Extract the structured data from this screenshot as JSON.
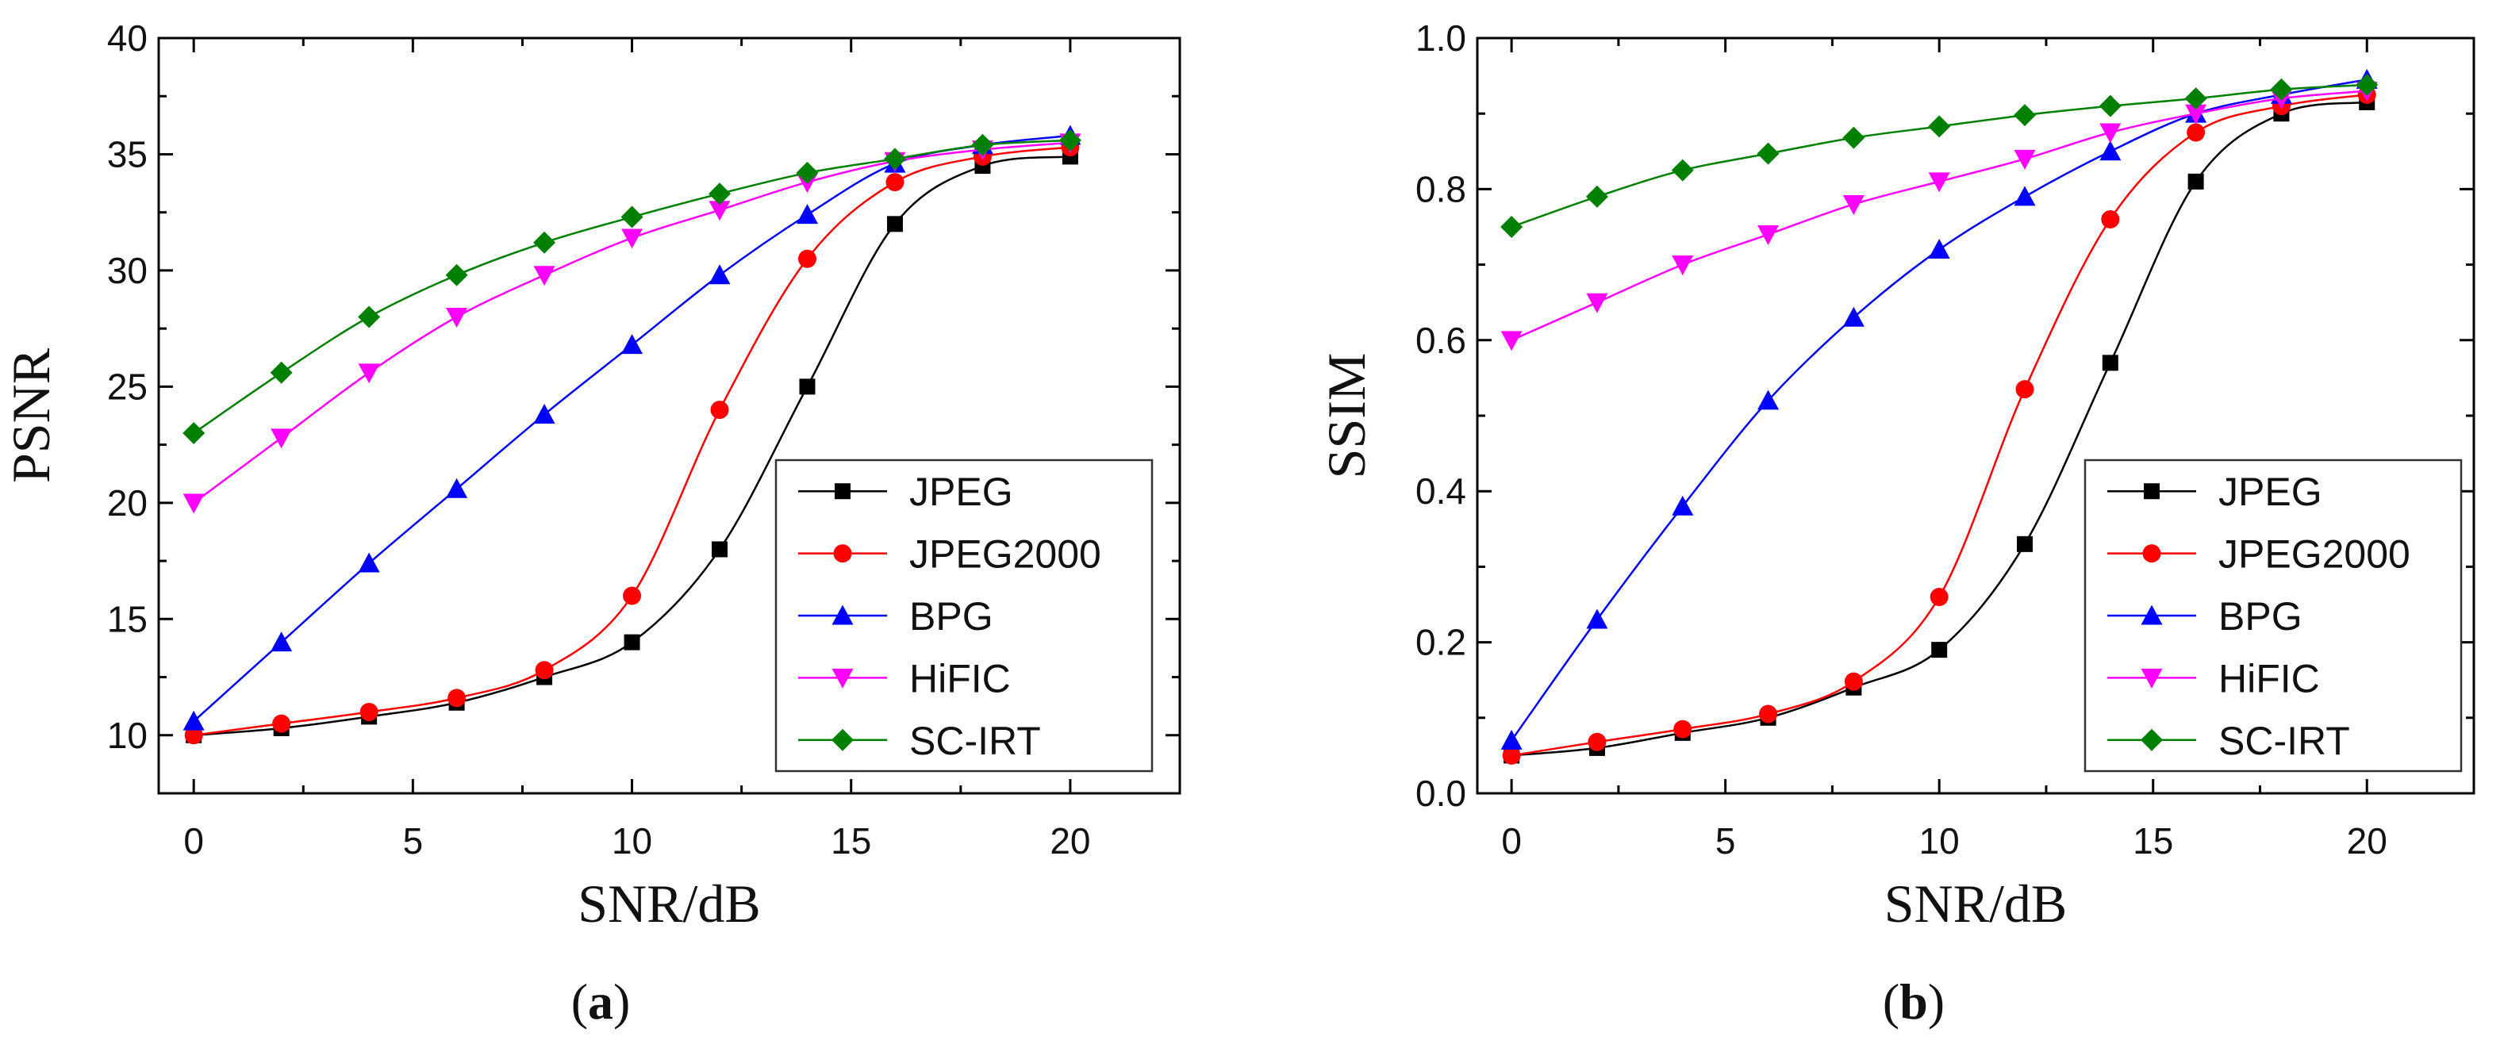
{
  "chart_data": [
    {
      "type": "line",
      "panel_label": "a",
      "xlabel": "SNR/dB",
      "ylabel": "PSNR",
      "xlim": [
        -0.8,
        22.5
      ],
      "ylim": [
        7.5,
        40
      ],
      "xticks": [
        0,
        5,
        10,
        15,
        20
      ],
      "yticks": [
        10,
        15,
        20,
        25,
        30,
        35,
        40
      ],
      "x_minor_ticks": [
        2.5,
        7.5,
        12.5,
        17.5
      ],
      "y_minor_ticks": [
        12.5,
        17.5,
        22.5,
        27.5,
        32.5,
        37.5
      ],
      "legend_position": "bottom-right",
      "x": [
        0,
        2,
        4,
        6,
        8,
        10,
        12,
        14,
        16,
        18,
        20
      ],
      "series": [
        {
          "name": "JPEG",
          "color": "#000000",
          "marker": "square",
          "values": [
            10.0,
            10.3,
            10.8,
            11.4,
            12.5,
            14.0,
            18.0,
            25.0,
            32.0,
            34.5,
            34.9
          ]
        },
        {
          "name": "JPEG2000",
          "color": "#ff0000",
          "marker": "circle",
          "values": [
            10.0,
            10.5,
            11.0,
            11.6,
            12.8,
            16.0,
            24.0,
            30.5,
            33.8,
            34.9,
            35.3
          ]
        },
        {
          "name": "BPG",
          "color": "#0000ff",
          "marker": "triangle-up",
          "values": [
            10.6,
            14.0,
            17.4,
            20.6,
            23.8,
            26.8,
            29.8,
            32.4,
            34.6,
            35.4,
            35.8
          ]
        },
        {
          "name": "HiFIC",
          "color": "#ff00ff",
          "marker": "triangle-down",
          "values": [
            20.0,
            22.8,
            25.6,
            28.0,
            29.8,
            31.4,
            32.6,
            33.8,
            34.7,
            35.2,
            35.5
          ]
        },
        {
          "name": "SC-IRT",
          "color": "#008000",
          "marker": "diamond",
          "values": [
            23.0,
            25.6,
            28.0,
            29.8,
            31.2,
            32.3,
            33.3,
            34.2,
            34.8,
            35.4,
            35.6
          ]
        }
      ]
    },
    {
      "type": "line",
      "panel_label": "b",
      "xlabel": "SNR/dB",
      "ylabel": "SSIM",
      "xlim": [
        -0.8,
        22.5
      ],
      "ylim": [
        0.0,
        1.0
      ],
      "xticks": [
        0,
        5,
        10,
        15,
        20
      ],
      "yticks": [
        "0.0",
        "0.2",
        "0.4",
        "0.6",
        "0.8",
        "1.0"
      ],
      "x_minor_ticks": [
        2.5,
        7.5,
        12.5,
        17.5
      ],
      "y_minor_ticks": [
        0.1,
        0.3,
        0.5,
        0.7,
        0.9
      ],
      "legend_position": "bottom-right",
      "x": [
        0,
        2,
        4,
        6,
        8,
        10,
        12,
        14,
        16,
        18,
        20
      ],
      "series": [
        {
          "name": "JPEG",
          "color": "#000000",
          "marker": "square",
          "values": [
            0.05,
            0.06,
            0.08,
            0.1,
            0.14,
            0.19,
            0.33,
            0.57,
            0.81,
            0.9,
            0.915
          ]
        },
        {
          "name": "JPEG2000",
          "color": "#ff0000",
          "marker": "circle",
          "values": [
            0.05,
            0.068,
            0.085,
            0.105,
            0.148,
            0.26,
            0.535,
            0.76,
            0.875,
            0.91,
            0.925
          ]
        },
        {
          "name": "BPG",
          "color": "#0000ff",
          "marker": "triangle-up",
          "values": [
            0.07,
            0.23,
            0.38,
            0.52,
            0.63,
            0.72,
            0.79,
            0.85,
            0.9,
            0.925,
            0.945
          ]
        },
        {
          "name": "HiFIC",
          "color": "#ff00ff",
          "marker": "triangle-down",
          "values": [
            0.6,
            0.65,
            0.7,
            0.74,
            0.78,
            0.81,
            0.84,
            0.875,
            0.9,
            0.92,
            0.93
          ]
        },
        {
          "name": "SC-IRT",
          "color": "#008000",
          "marker": "diamond",
          "values": [
            0.75,
            0.79,
            0.825,
            0.847,
            0.868,
            0.883,
            0.898,
            0.91,
            0.92,
            0.932,
            0.938
          ]
        }
      ]
    }
  ]
}
